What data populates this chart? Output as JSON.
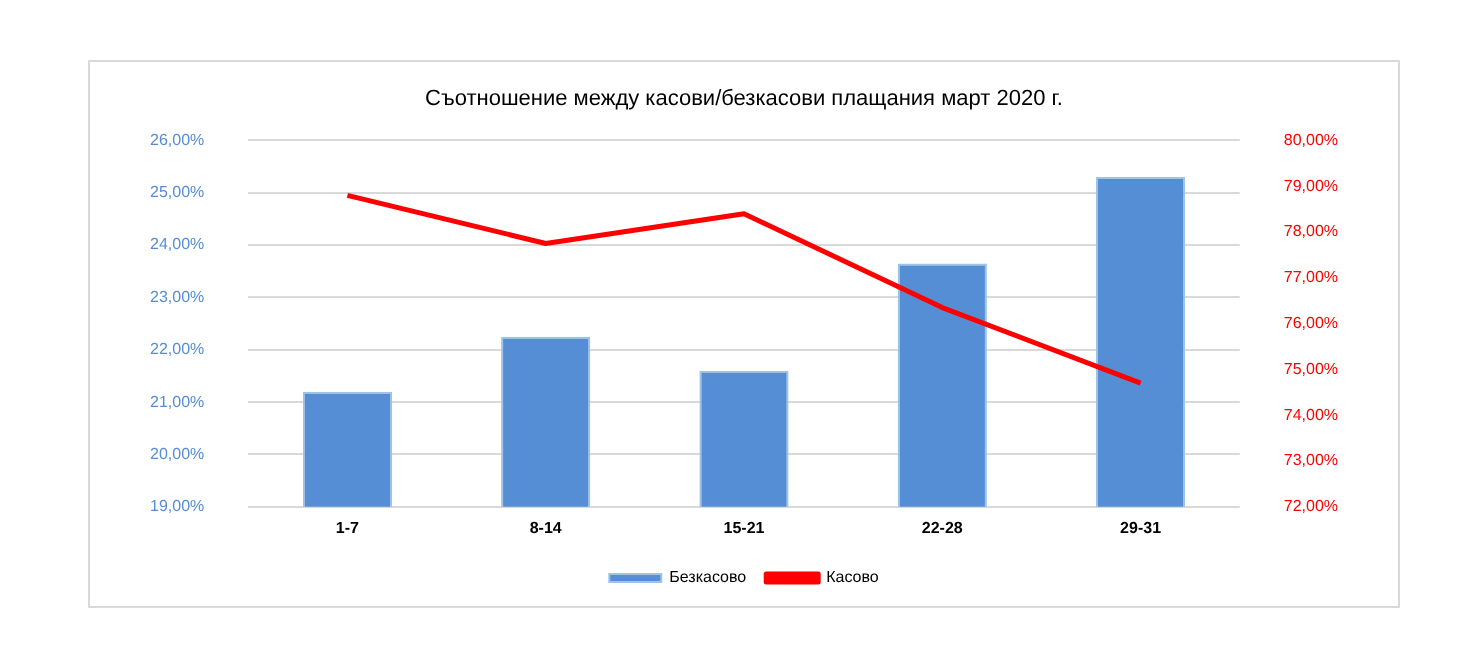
{
  "chart_data": {
    "type": "bar",
    "title": "Съотношение между касови/безкасови плащания март 2020 г.",
    "categories": [
      "1-7",
      "8-14",
      "15-21",
      "22-28",
      "29-31"
    ],
    "series": [
      {
        "name": "Безкасово",
        "color": "#558ed5",
        "values": [
          21.2,
          22.25,
          21.6,
          23.65,
          25.3
        ]
      },
      {
        "name": "Касово",
        "type": "line",
        "axis": "y2",
        "color": "#ff0000",
        "values": [
          78.8,
          77.75,
          78.4,
          76.35,
          74.7
        ]
      }
    ],
    "ylim": [
      19,
      26
    ],
    "yticks": [
      {
        "value": 19,
        "label": "19,00%"
      },
      {
        "value": 20,
        "label": "20,00%"
      },
      {
        "value": 21,
        "label": "21,00%"
      },
      {
        "value": 22,
        "label": "22,00%"
      },
      {
        "value": 23,
        "label": "23,00%"
      },
      {
        "value": 24,
        "label": "24,00%"
      },
      {
        "value": 25,
        "label": "25,00%"
      },
      {
        "value": 26,
        "label": "26,00%"
      }
    ],
    "y2lim": [
      72,
      80
    ],
    "y2ticks": [
      {
        "value": 72,
        "label": "72,00%"
      },
      {
        "value": 73,
        "label": "73,00%"
      },
      {
        "value": 74,
        "label": "74,00%"
      },
      {
        "value": 75,
        "label": "75,00%"
      },
      {
        "value": 76,
        "label": "76,00%"
      },
      {
        "value": 77,
        "label": "77,00%"
      },
      {
        "value": 78,
        "label": "78,00%"
      },
      {
        "value": 79,
        "label": "79,00%"
      },
      {
        "value": 80,
        "label": "80,00%"
      }
    ],
    "grid": "y",
    "legend": "bottom",
    "marker": "none"
  }
}
